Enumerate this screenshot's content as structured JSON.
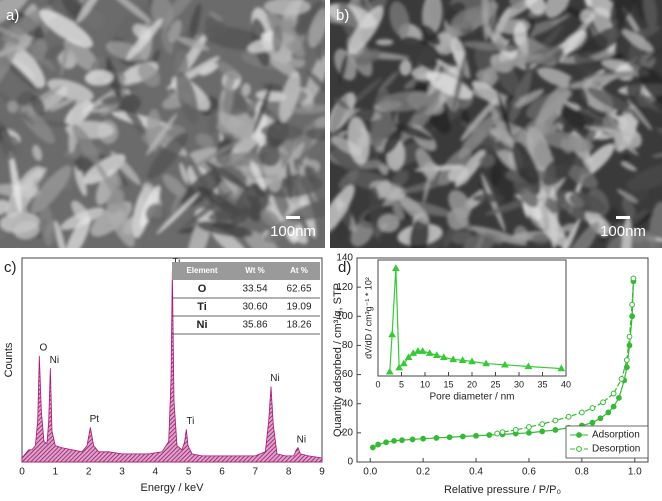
{
  "images": [
    {
      "panel_label": "a)",
      "scale_bar": "100nm"
    },
    {
      "panel_label": "b)",
      "scale_bar": "100nm"
    }
  ],
  "chart_data": [
    {
      "type": "area",
      "panel_label": "c)",
      "x_label": "Energy / keV",
      "y_label": "Counts",
      "xlim": [
        0,
        9
      ],
      "xticks": [
        0,
        1,
        2,
        3,
        4,
        5,
        6,
        7,
        8,
        9
      ],
      "ylim": [
        0,
        100
      ],
      "color": "#b0147a",
      "series": [
        {
          "color": "#b0147a",
          "x": [
            0,
            0.1,
            0.2,
            0.3,
            0.4,
            0.47,
            0.52,
            0.58,
            0.66,
            0.75,
            0.8,
            0.85,
            0.9,
            1.0,
            1.2,
            1.5,
            1.8,
            1.95,
            2.05,
            2.15,
            2.3,
            2.6,
            3.0,
            3.4,
            3.8,
            4.2,
            4.4,
            4.47,
            4.51,
            4.56,
            4.65,
            4.8,
            4.88,
            4.93,
            4.98,
            5.1,
            5.4,
            5.8,
            6.2,
            6.6,
            7.0,
            7.3,
            7.4,
            7.47,
            7.54,
            7.65,
            7.9,
            8.15,
            8.23,
            8.28,
            8.35,
            8.6,
            9.0
          ],
          "values": [
            2,
            4,
            6,
            6,
            8,
            20,
            52,
            25,
            10,
            9,
            20,
            46,
            15,
            8,
            7,
            6,
            5,
            8,
            17,
            8,
            5,
            5,
            4,
            4,
            4,
            5,
            10,
            40,
            94,
            30,
            8,
            6,
            10,
            16,
            8,
            4,
            3,
            3,
            3,
            3,
            3,
            5,
            20,
            37,
            18,
            4,
            3,
            3,
            6,
            7,
            4,
            3,
            2
          ]
        }
      ],
      "annotations": [
        {
          "text": "O",
          "x": 0.52,
          "y": 52
        },
        {
          "text": "Ni",
          "x": 0.85,
          "y": 46
        },
        {
          "text": "Pt",
          "x": 2.05,
          "y": 17
        },
        {
          "text": "Ti",
          "x": 4.51,
          "y": 94
        },
        {
          "text": "Ti",
          "x": 4.93,
          "y": 16
        },
        {
          "text": "Ni",
          "x": 7.47,
          "y": 37
        },
        {
          "text": "Ni",
          "x": 8.26,
          "y": 7
        }
      ],
      "table": {
        "columns": [
          "Element",
          "Wt %",
          "At %"
        ],
        "rows": [
          [
            "O",
            "33.54",
            "62.65"
          ],
          [
            "Ti",
            "30.60",
            "19.09"
          ],
          [
            "Ni",
            "35.86",
            "18.26"
          ]
        ]
      }
    },
    {
      "type": "line",
      "panel_label": "d)",
      "x_label": "Relative pressure / P/P₀",
      "y_label": "Quantity adsorbed / cm³/g, STP",
      "xlim": [
        -0.05,
        1.05
      ],
      "xticks": [
        {
          "value": 0,
          "label": "0.0"
        },
        0.2,
        0.4,
        0.6,
        0.8,
        {
          "value": 1,
          "label": "1.0"
        }
      ],
      "ylim": [
        0,
        140
      ],
      "yticks": [
        0,
        20,
        40,
        60,
        80,
        100,
        120,
        140
      ],
      "legend": "lower right",
      "series": [
        {
          "name": "Adsorption",
          "color": "#33bb33",
          "marker": "circle",
          "filled": true,
          "dashed": false,
          "x": [
            0.01,
            0.03,
            0.06,
            0.09,
            0.12,
            0.16,
            0.2,
            0.25,
            0.3,
            0.35,
            0.4,
            0.45,
            0.5,
            0.55,
            0.6,
            0.65,
            0.7,
            0.75,
            0.8,
            0.84,
            0.87,
            0.9,
            0.92,
            0.94,
            0.96,
            0.97,
            0.98,
            0.99,
            0.995
          ],
          "values": [
            10,
            12,
            13.5,
            14.5,
            15,
            15.5,
            16,
            16.5,
            17,
            17.5,
            18,
            18.5,
            19,
            19.5,
            20,
            21,
            22,
            23.5,
            25,
            27,
            30,
            34,
            38,
            44,
            56,
            65,
            80,
            100,
            124
          ]
        },
        {
          "name": "Desorption",
          "color": "#33bb33",
          "marker": "circle",
          "filled": false,
          "dashed": true,
          "x": [
            0.995,
            0.99,
            0.98,
            0.97,
            0.95,
            0.92,
            0.88,
            0.84,
            0.8,
            0.75,
            0.7,
            0.65,
            0.6,
            0.55,
            0.5,
            0.48
          ],
          "values": [
            126,
            108,
            86,
            70,
            57,
            47,
            41,
            37,
            34,
            31,
            28.5,
            26,
            24,
            22,
            20.5,
            19.5
          ]
        }
      ]
    },
    {
      "type": "line",
      "x_label": "Pore diameter / nm",
      "y_label": "dV/dD / cm³g⁻¹ * 10²",
      "xlim": [
        0,
        40
      ],
      "xticks": [
        0,
        5,
        10,
        15,
        20,
        25,
        30,
        35,
        40
      ],
      "ylim": [
        0,
        28
      ],
      "series": [
        {
          "color": "#33cc33",
          "marker": "triangle",
          "filled": true,
          "dashed": false,
          "x": [
            2.5,
            3,
            3.8,
            4.5,
            5.5,
            6.5,
            7.5,
            8.5,
            9.5,
            11,
            12.5,
            14,
            16,
            18,
            20,
            23,
            27,
            32,
            39
          ],
          "values": [
            1,
            10,
            26,
            2,
            3,
            4.5,
            5.5,
            6,
            6,
            5.5,
            5,
            4.5,
            4,
            3.8,
            3.5,
            3,
            2.7,
            2.3,
            1.8
          ]
        }
      ]
    }
  ]
}
